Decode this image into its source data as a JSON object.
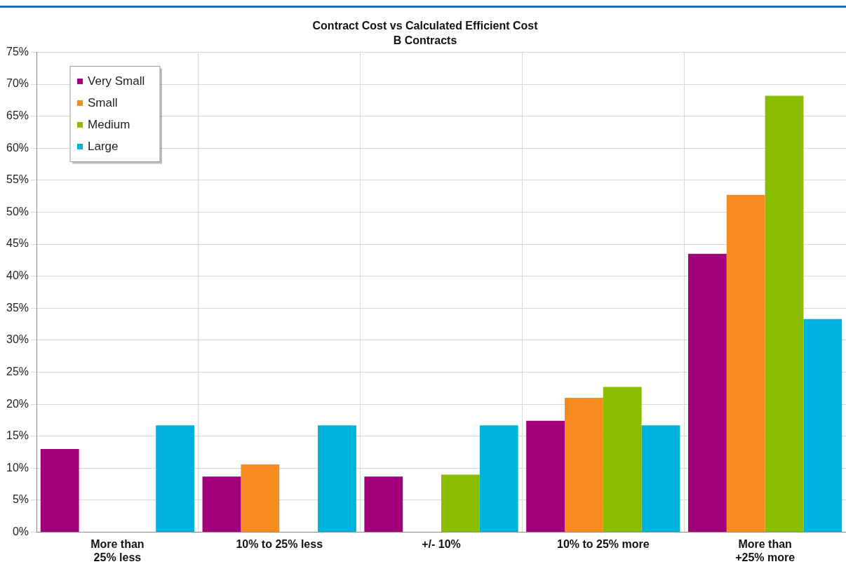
{
  "chart_data": {
    "type": "bar",
    "title": "Contract Cost vs Calculated Efficient Cost",
    "subtitle": "B Contracts",
    "categories": [
      "More than 25% less",
      "10% to 25% less",
      "+/- 10%",
      "10% to 25% more",
      "More than +25% more"
    ],
    "series": [
      {
        "name": "Very Small",
        "color": "#a0007a",
        "values": [
          13.0,
          8.7,
          8.7,
          17.4,
          43.5
        ]
      },
      {
        "name": "Small",
        "color": "#f68b1f",
        "values": [
          0,
          10.6,
          0,
          21.0,
          52.7
        ]
      },
      {
        "name": "Medium",
        "color": "#8abd00",
        "values": [
          0,
          0,
          9.0,
          22.7,
          68.2
        ]
      },
      {
        "name": "Large",
        "color": "#00b3de",
        "values": [
          16.7,
          16.7,
          16.7,
          16.7,
          33.3
        ]
      }
    ],
    "ylim": [
      0,
      75
    ],
    "yticks": [
      {
        "value": 0,
        "label": "0%"
      },
      {
        "value": 5,
        "label": "5%"
      },
      {
        "value": 10,
        "label": "10%"
      },
      {
        "value": 15,
        "label": "15%"
      },
      {
        "value": 20,
        "label": "20%"
      },
      {
        "value": 25,
        "label": "25%"
      },
      {
        "value": 30,
        "label": "30%"
      },
      {
        "value": 35,
        "label": "35%"
      },
      {
        "value": 40,
        "label": "40%"
      },
      {
        "value": 45,
        "label": "45%"
      },
      {
        "value": 50,
        "label": "50%"
      },
      {
        "value": 55,
        "label": "55%"
      },
      {
        "value": 60,
        "label": "60%"
      },
      {
        "value": 65,
        "label": "65%"
      },
      {
        "value": 70,
        "label": "70%"
      },
      {
        "value": 75,
        "label": "75%"
      }
    ],
    "grid": true,
    "legend": "top left"
  }
}
